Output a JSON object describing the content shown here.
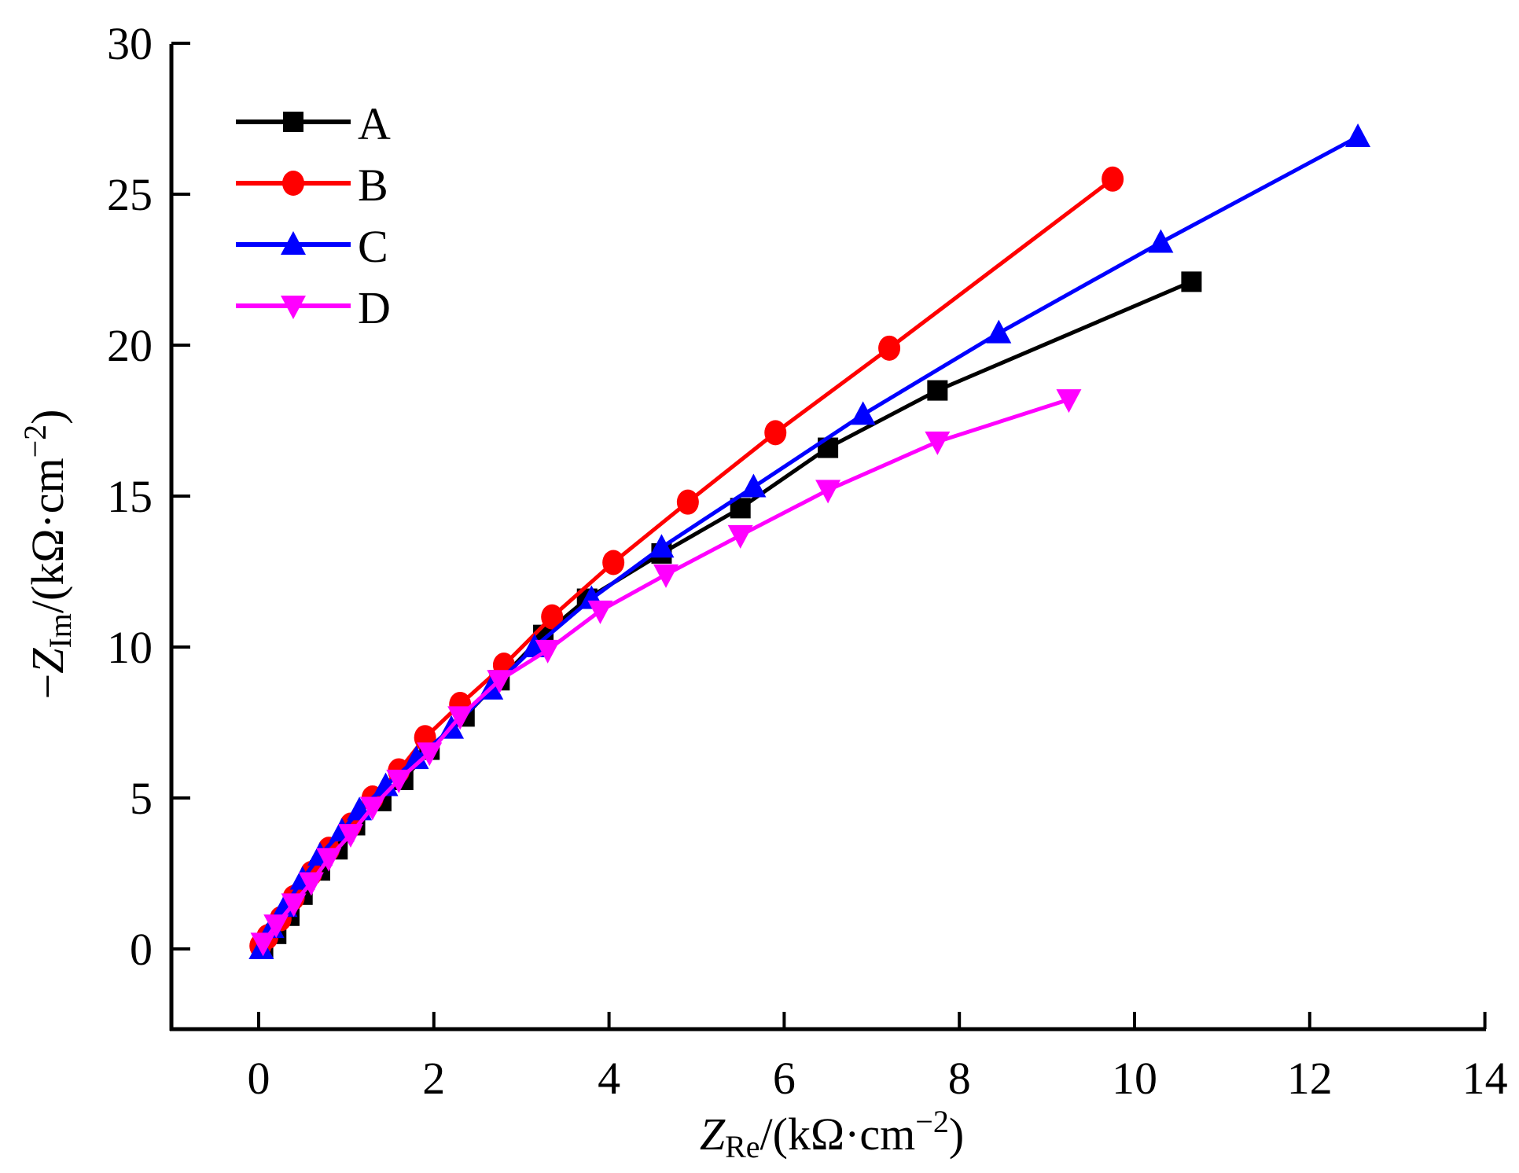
{
  "chart_data": {
    "type": "line",
    "title": "",
    "xlabel": {
      "main": "Z",
      "sub": "Re",
      "rest": "/(kΩ·cm",
      "sup": "−2",
      "close": ")"
    },
    "ylabel": {
      "prefix": "−",
      "main": "Z",
      "sub": "Im",
      "rest": "/(kΩ·cm",
      "sup": "−2",
      "close": ")"
    },
    "xlim": [
      -1,
      14
    ],
    "ylim": [
      -2.5,
      30
    ],
    "xticks": [
      0,
      2,
      4,
      6,
      8,
      10,
      12,
      14
    ],
    "xtick_labels": [
      "0",
      "2",
      "4",
      "6",
      "8",
      "10",
      "12",
      "14"
    ],
    "yticks": [
      0,
      5,
      10,
      15,
      20,
      25,
      30
    ],
    "ytick_labels": [
      "0",
      "5",
      "10",
      "15",
      "20",
      "25",
      "30"
    ],
    "grid": false,
    "legend_position": "top-left",
    "series": [
      {
        "name": "A",
        "color": "#000000",
        "marker": "square",
        "x": [
          0.05,
          0.2,
          0.35,
          0.5,
          0.7,
          0.9,
          1.1,
          1.4,
          1.65,
          1.95,
          2.35,
          2.75,
          3.25,
          3.75,
          4.6,
          5.5,
          6.5,
          7.75,
          10.65
        ],
        "y": [
          0.0,
          0.5,
          1.1,
          1.8,
          2.6,
          3.3,
          4.1,
          4.9,
          5.6,
          6.6,
          7.7,
          8.9,
          10.4,
          11.6,
          13.1,
          14.6,
          16.6,
          18.5,
          22.1
        ]
      },
      {
        "name": "B",
        "color": "#ff0000",
        "marker": "circle",
        "x": [
          0.02,
          0.1,
          0.25,
          0.4,
          0.6,
          0.8,
          1.05,
          1.3,
          1.6,
          1.9,
          2.3,
          2.8,
          3.35,
          4.05,
          4.9,
          5.9,
          7.2,
          9.75
        ],
        "y": [
          0.1,
          0.4,
          1.0,
          1.7,
          2.5,
          3.3,
          4.1,
          5.0,
          5.9,
          7.0,
          8.1,
          9.4,
          11.0,
          12.8,
          14.8,
          17.1,
          19.9,
          25.5
        ]
      },
      {
        "name": "C",
        "color": "#0000ff",
        "marker": "triangle-up",
        "x": [
          0.03,
          0.15,
          0.3,
          0.5,
          0.7,
          0.95,
          1.15,
          1.45,
          1.8,
          2.2,
          2.65,
          3.15,
          3.8,
          4.6,
          5.65,
          6.9,
          8.45,
          10.3,
          12.55
        ],
        "y": [
          0.0,
          0.7,
          1.4,
          2.3,
          3.1,
          3.9,
          4.6,
          5.4,
          6.3,
          7.3,
          8.6,
          10.0,
          11.6,
          13.3,
          15.3,
          17.7,
          20.4,
          23.4,
          26.9
        ]
      },
      {
        "name": "D",
        "color": "#ff00ff",
        "marker": "triangle-down",
        "x": [
          0.05,
          0.2,
          0.4,
          0.6,
          0.8,
          1.05,
          1.3,
          1.6,
          1.95,
          2.3,
          2.75,
          3.3,
          3.9,
          4.65,
          5.5,
          6.5,
          7.75,
          9.25
        ],
        "y": [
          0.2,
          0.8,
          1.5,
          2.2,
          3.0,
          3.8,
          4.7,
          5.6,
          6.5,
          7.7,
          8.9,
          9.9,
          11.2,
          12.4,
          13.7,
          15.2,
          16.8,
          18.2
        ]
      }
    ]
  }
}
